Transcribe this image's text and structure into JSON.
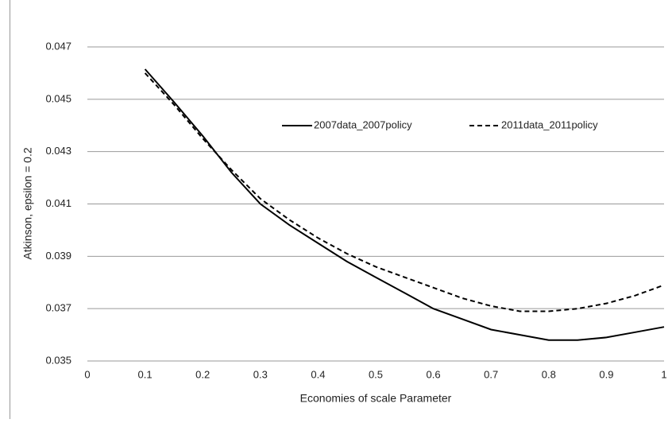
{
  "chart_data": {
    "type": "line",
    "x_label": "Economies of scale Parameter",
    "y_label": "Atkinson, epsilon = 0.2",
    "x": [
      0.1,
      0.15,
      0.2,
      0.25,
      0.3,
      0.35,
      0.4,
      0.45,
      0.5,
      0.55,
      0.6,
      0.65,
      0.7,
      0.75,
      0.8,
      0.85,
      0.9,
      0.95,
      1
    ],
    "series": [
      {
        "name": "2007data_2007policy",
        "color": "#000000",
        "style": "solid",
        "values": [
          0.04615,
          0.0449,
          0.0436,
          0.0422,
          0.041,
          0.0402,
          0.0395,
          0.0388,
          0.0382,
          0.0376,
          0.037,
          0.0366,
          0.0362,
          0.036,
          0.0358,
          0.0358,
          0.0359,
          0.0361,
          0.0363
        ]
      },
      {
        "name": "2011data_2011policy",
        "color": "#000000",
        "style": "dashed",
        "values": [
          0.046,
          0.0448,
          0.0435,
          0.0423,
          0.0412,
          0.0404,
          0.0397,
          0.0391,
          0.0386,
          0.0382,
          0.0378,
          0.0374,
          0.0371,
          0.0369,
          0.0369,
          0.037,
          0.0372,
          0.0375,
          0.0379
        ]
      }
    ],
    "xlim": [
      0,
      1
    ],
    "xticks": [
      0,
      0.1,
      0.2,
      0.3,
      0.4,
      0.5,
      0.6,
      0.7,
      0.8,
      0.9,
      1
    ],
    "ylim": [
      0.035,
      0.047
    ],
    "yticks": [
      0.035,
      0.037,
      0.039,
      0.041,
      0.043,
      0.045,
      0.047
    ],
    "grid": true,
    "legend": "top"
  }
}
